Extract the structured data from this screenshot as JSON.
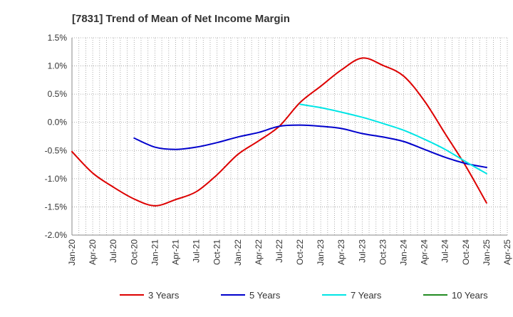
{
  "chart_data": {
    "type": "line",
    "title": "[7831]  Trend of Mean of Net Income Margin",
    "xlabel": "",
    "ylabel": "",
    "ylim": [
      -2.0,
      1.5
    ],
    "y_ticks": [
      1.5,
      1.0,
      0.5,
      0.0,
      -0.5,
      -1.0,
      -1.5,
      -2.0
    ],
    "y_tick_labels": [
      "1.5%",
      "1.0%",
      "0.5%",
      "0.0%",
      "-0.5%",
      "-1.0%",
      "-1.5%",
      "-2.0%"
    ],
    "x_tick_labels": [
      "Jan-20",
      "Apr-20",
      "Jul-20",
      "Oct-20",
      "Jan-21",
      "Apr-21",
      "Jul-21",
      "Oct-21",
      "Jan-22",
      "Apr-22",
      "Jul-22",
      "Oct-22",
      "Jan-23",
      "Apr-23",
      "Jul-23",
      "Oct-23",
      "Jan-24",
      "Apr-24",
      "Jul-24",
      "Oct-24",
      "Jan-25",
      "Apr-25"
    ],
    "grid": true,
    "legend_position": "bottom",
    "series": [
      {
        "name": "3 Years",
        "color": "#dd0000",
        "points": [
          [
            "Jan-20",
            -0.52
          ],
          [
            "Apr-20",
            -0.9
          ],
          [
            "Jul-20",
            -1.15
          ],
          [
            "Oct-20",
            -1.36
          ],
          [
            "Jan-21",
            -1.48
          ],
          [
            "Apr-21",
            -1.37
          ],
          [
            "Jul-21",
            -1.23
          ],
          [
            "Oct-21",
            -0.93
          ],
          [
            "Jan-22",
            -0.57
          ],
          [
            "Apr-22",
            -0.33
          ],
          [
            "Jul-22",
            -0.07
          ],
          [
            "Oct-22",
            0.35
          ],
          [
            "Jan-23",
            0.64
          ],
          [
            "Apr-23",
            0.93
          ],
          [
            "Jul-23",
            1.14
          ],
          [
            "Oct-23",
            1.01
          ],
          [
            "Jan-24",
            0.82
          ],
          [
            "Apr-24",
            0.38
          ],
          [
            "Jul-24",
            -0.2
          ],
          [
            "Oct-24",
            -0.78
          ],
          [
            "Jan-25",
            -1.43
          ]
        ]
      },
      {
        "name": "5 Years",
        "color": "#0000cc",
        "points": [
          [
            "Oct-20",
            -0.28
          ],
          [
            "Jan-21",
            -0.44
          ],
          [
            "Apr-21",
            -0.48
          ],
          [
            "Jul-21",
            -0.44
          ],
          [
            "Oct-21",
            -0.36
          ],
          [
            "Jan-22",
            -0.26
          ],
          [
            "Apr-22",
            -0.18
          ],
          [
            "Jul-22",
            -0.07
          ],
          [
            "Oct-22",
            -0.05
          ],
          [
            "Jan-23",
            -0.07
          ],
          [
            "Apr-23",
            -0.11
          ],
          [
            "Jul-23",
            -0.2
          ],
          [
            "Oct-23",
            -0.26
          ],
          [
            "Jan-24",
            -0.34
          ],
          [
            "Apr-24",
            -0.48
          ],
          [
            "Jul-24",
            -0.62
          ],
          [
            "Oct-24",
            -0.73
          ],
          [
            "Jan-25",
            -0.8
          ]
        ]
      },
      {
        "name": "7 Years",
        "color": "#00e5e5",
        "points": [
          [
            "Oct-22",
            0.32
          ],
          [
            "Jan-23",
            0.26
          ],
          [
            "Apr-23",
            0.18
          ],
          [
            "Jul-23",
            0.09
          ],
          [
            "Oct-23",
            -0.02
          ],
          [
            "Jan-24",
            -0.14
          ],
          [
            "Apr-24",
            -0.3
          ],
          [
            "Jul-24",
            -0.48
          ],
          [
            "Oct-24",
            -0.7
          ],
          [
            "Jan-25",
            -0.91
          ]
        ]
      },
      {
        "name": "10 Years",
        "color": "#228b22",
        "points": []
      }
    ]
  }
}
